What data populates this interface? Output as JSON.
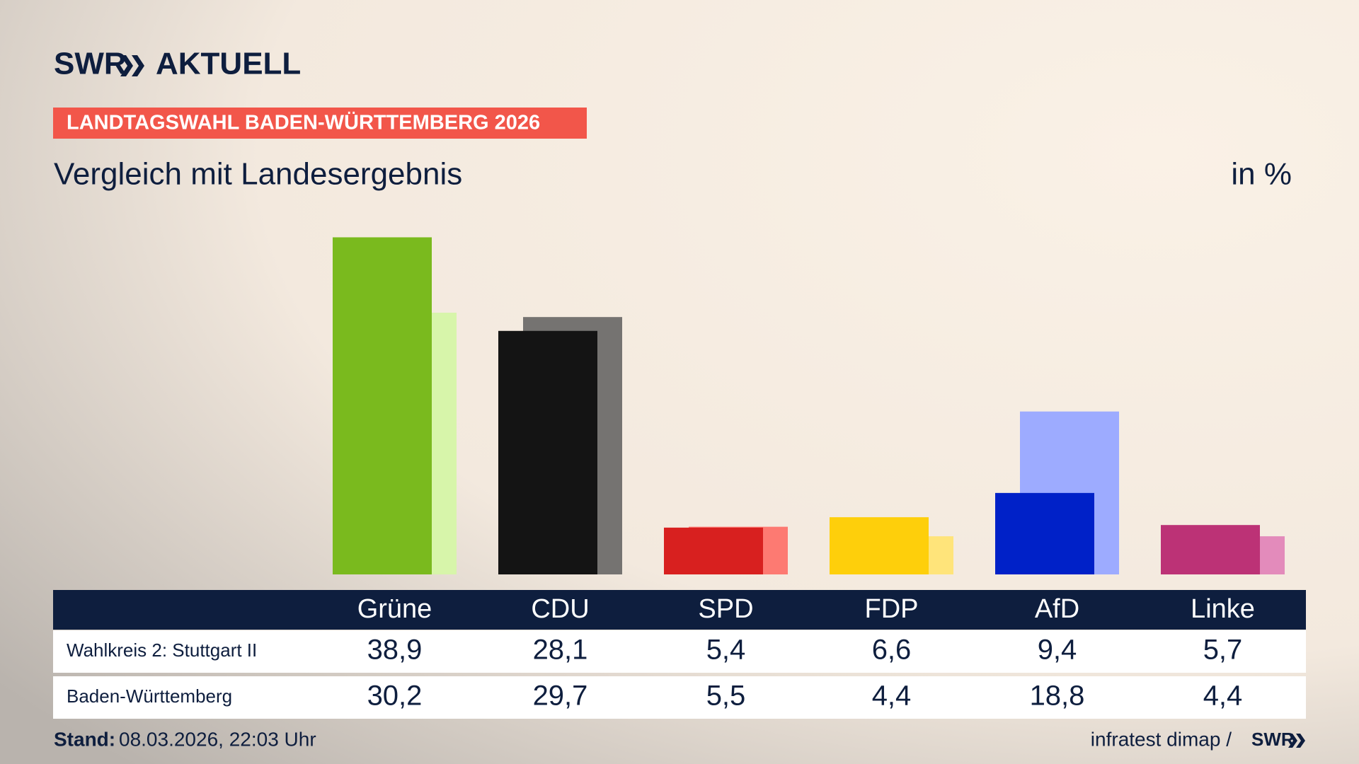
{
  "header": {
    "brand": "SWR",
    "brand_suffix": "AKTUELL",
    "kicker": "LANDTAGSWAHL BADEN-WÜRTTEMBERG 2026"
  },
  "chart_data": {
    "type": "bar",
    "title": "Vergleich mit Landesergebnis",
    "unit": "in %",
    "categories": [
      "Grüne",
      "CDU",
      "SPD",
      "FDP",
      "AfD",
      "Linke"
    ],
    "ylim": [
      0,
      40
    ],
    "series": [
      {
        "name": "Wahlkreis 2: Stuttgart II",
        "colors": [
          "#7aba1e",
          "#141414",
          "#d8201f",
          "#fecf0b",
          "#0021c8",
          "#bc3276"
        ],
        "values": [
          38.9,
          28.1,
          5.4,
          6.6,
          9.4,
          5.7
        ],
        "value_labels": [
          "38,9",
          "28,1",
          "5,4",
          "6,6",
          "9,4",
          "5,7"
        ]
      },
      {
        "name": "Baden-Württemberg",
        "colors": [
          "#d7f5aa",
          "#757371",
          "#fd7a72",
          "#ffe47a",
          "#9dabff",
          "#e38bbb"
        ],
        "values": [
          30.2,
          29.7,
          5.5,
          4.4,
          18.8,
          4.4
        ],
        "value_labels": [
          "30,2",
          "29,7",
          "5,5",
          "4,4",
          "18,8",
          "4,4"
        ]
      }
    ]
  },
  "footer": {
    "stand_label": "Stand:",
    "stand": "08.03.2026, 22:03 Uhr",
    "source": "infratest dimap /",
    "source_brand": "SWR"
  }
}
